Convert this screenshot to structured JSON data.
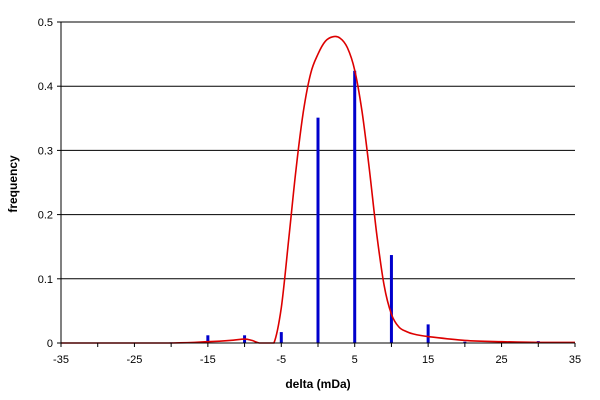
{
  "chart_data": {
    "type": "bar",
    "title": "",
    "xlabel": "delta (mDa)",
    "ylabel": "frequency",
    "xlim": [
      -35,
      35
    ],
    "ylim": [
      0,
      0.5
    ],
    "x_ticks": [
      -35,
      -25,
      -15,
      -5,
      5,
      15,
      25,
      35
    ],
    "x_tick_labels": [
      "-35",
      "-25",
      "-15",
      "-5",
      "5",
      "15",
      "25",
      "35"
    ],
    "y_ticks": [
      0,
      0.1,
      0.2,
      0.3,
      0.4,
      0.5
    ],
    "y_tick_labels": [
      "0",
      "0.1",
      "0.2",
      "0.3",
      "0.4",
      "0.5"
    ],
    "grid": "horizontal",
    "legend": "none",
    "colors": {
      "bars": "#0000cc",
      "curve": "#dd0000",
      "grid": "#000000"
    },
    "series": [
      {
        "type": "bar",
        "x": [
          -20,
          -15,
          -10,
          -5,
          0,
          5,
          10,
          15,
          20,
          25,
          30
        ],
        "values": [
          0.001,
          0.012,
          0.012,
          0.017,
          0.351,
          0.424,
          0.137,
          0.029,
          0.002,
          0.003,
          0.003
        ]
      },
      {
        "type": "line",
        "x": [
          -35,
          -20,
          -15,
          -12,
          -10,
          -9,
          -8,
          -7,
          -6,
          -5,
          -4,
          -3,
          -2,
          -1,
          0,
          1,
          2,
          3,
          4,
          5,
          6,
          7,
          8,
          9,
          10,
          11,
          12,
          13,
          15,
          20,
          25,
          30,
          35
        ],
        "values": [
          0.0,
          0.0,
          0.002,
          0.004,
          0.006,
          0.004,
          0.0,
          0.0,
          0.0,
          0.055,
          0.16,
          0.27,
          0.36,
          0.42,
          0.45,
          0.47,
          0.477,
          0.475,
          0.46,
          0.425,
          0.36,
          0.27,
          0.17,
          0.09,
          0.045,
          0.025,
          0.018,
          0.014,
          0.01,
          0.004,
          0.002,
          0.001,
          0.001
        ]
      }
    ]
  }
}
